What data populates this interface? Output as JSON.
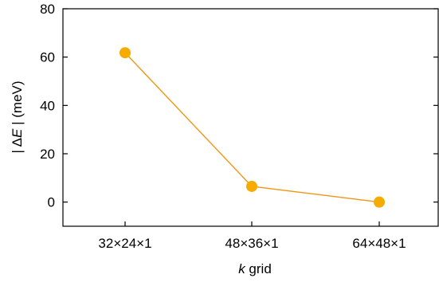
{
  "chart_data": {
    "type": "line",
    "categories": [
      "32×24×1",
      "48×36×1",
      "64×48×1"
    ],
    "series": [
      {
        "values": [
          61.8,
          6.5,
          0.0
        ],
        "color": "#f5ab00",
        "line_color": "#f29513"
      }
    ],
    "xlabel_italic": "k",
    "xlabel_rest": " grid",
    "ylabel_prefix": "| ",
    "ylabel_delta": "Δ",
    "ylabel_e": "E",
    "ylabel_suffix": " |  (meV)",
    "ylim": [
      -10,
      80
    ],
    "yticks": [
      0,
      20,
      40,
      60,
      80
    ],
    "grid": false,
    "legend": false,
    "marker": "circle"
  }
}
